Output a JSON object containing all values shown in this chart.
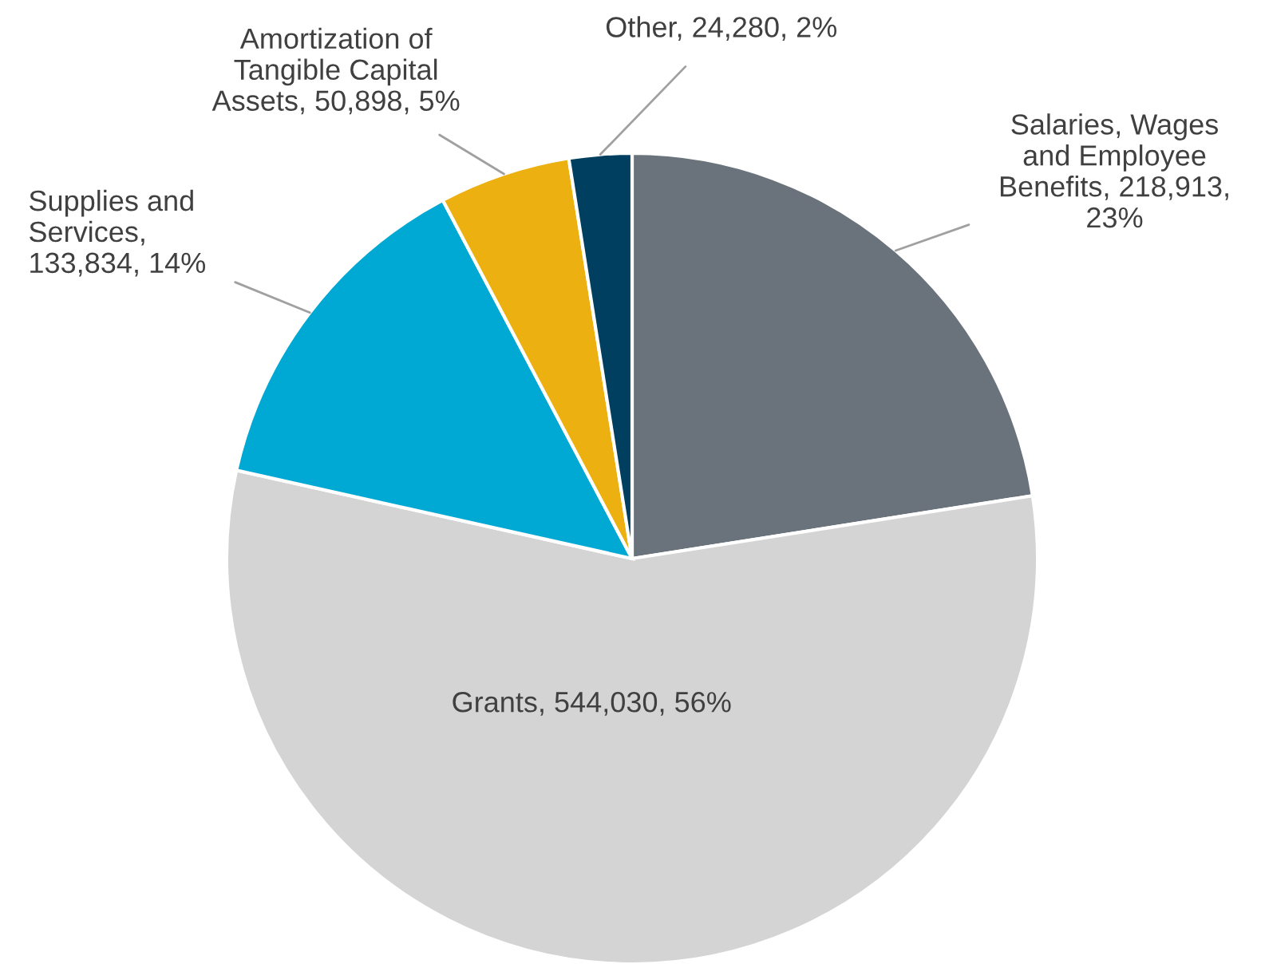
{
  "chart_data": {
    "type": "pie",
    "categories": [
      "Salaries, Wages and Employee Benefits",
      "Grants",
      "Supplies and Services",
      "Amortization of Tangible Capital Assets",
      "Other"
    ],
    "values": [
      218913,
      544030,
      133834,
      50898,
      24280
    ],
    "value_labels": [
      ", 218,913, 23%",
      ", 544,030, 56%",
      ", 133,834, 14%",
      ", 50,898, 5%",
      ", 24,280, 2%"
    ],
    "colors": [
      "#6a737b",
      "#d3d4d3",
      "#00a9d4",
      "#ecb110",
      "#003f5f"
    ],
    "legend": false
  }
}
